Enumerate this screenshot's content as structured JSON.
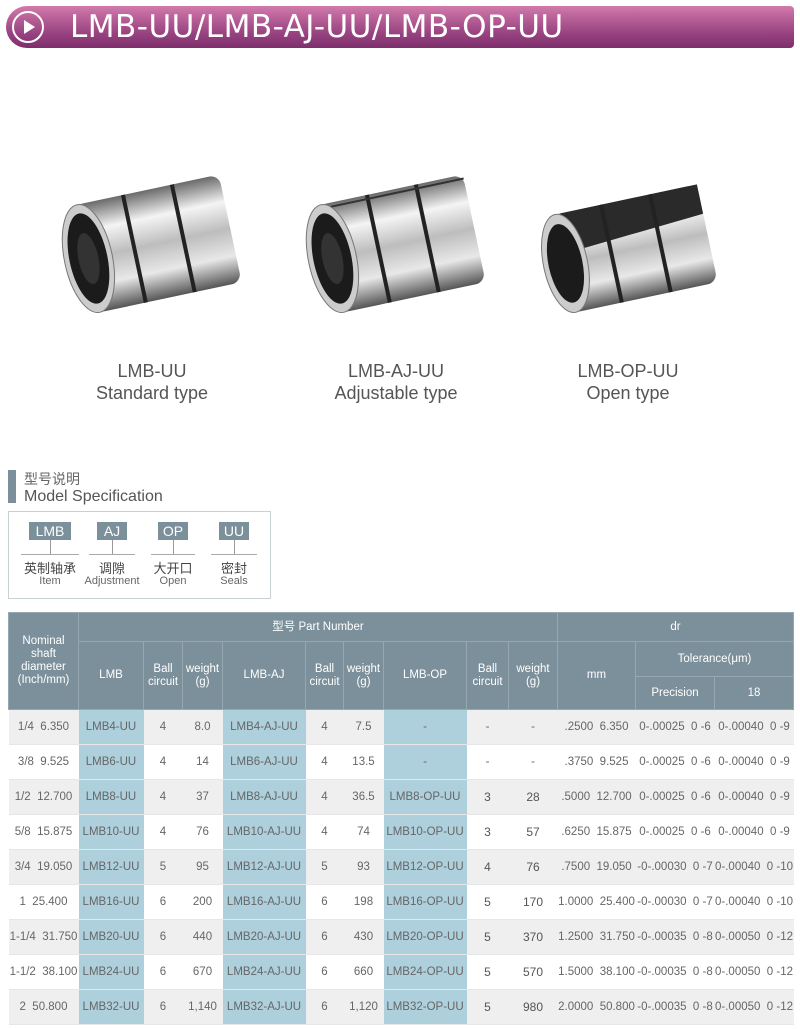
{
  "header": {
    "title": "LMB-UU/LMB-AJ-UU/LMB-OP-UU",
    "icon": "play-arrow-icon",
    "colors": {
      "banner": "#9c4684",
      "table_header": "#7b909a",
      "part_cell": "#aecfdc"
    }
  },
  "products": [
    {
      "model": "LMB-UU",
      "type": "Standard type"
    },
    {
      "model": "LMB-AJ-UU",
      "type": "Adjustable type"
    },
    {
      "model": "LMB-OP-UU",
      "type": "Open type"
    }
  ],
  "spec": {
    "title_cn": "型号说明",
    "title_en": "Model Specification",
    "parts": [
      {
        "code": "LMB",
        "cn": "英制轴承",
        "en": "Item"
      },
      {
        "code": "AJ",
        "cn": "调隙",
        "en": "Adjustment"
      },
      {
        "code": "OP",
        "cn": "大开口",
        "en": "Open"
      },
      {
        "code": "UU",
        "cn": "密封",
        "en": "Seals"
      }
    ]
  },
  "table": {
    "headers": {
      "nominal": "Nominal shaft diameter (Inch/mm)",
      "part_number": "型号 Part Number",
      "dr": "dr",
      "lmb": "LMB",
      "ball": "Ball circuit",
      "weight": "weight (g)",
      "lmb_aj": "LMB-AJ",
      "lmb_op": "LMB-OP",
      "mm": "mm",
      "tolerance": "Tolerance(μm)",
      "precision": "Precision",
      "grade": "18"
    },
    "rows": [
      [
        "1/4  6.350",
        "LMB4-UU",
        "4",
        "8.0",
        "LMB4-AJ-UU",
        "4",
        "7.5",
        "-",
        "-",
        "-",
        ".2500  6.350",
        "0-.00025  0 -6",
        "0-.00040  0 -9"
      ],
      [
        "3/8  9.525",
        "LMB6-UU",
        "4",
        "14",
        "LMB6-AJ-UU",
        "4",
        "13.5",
        "-",
        "-",
        "-",
        ".3750  9.525",
        "0-.00025  0 -6",
        "0-.00040  0 -9"
      ],
      [
        "1/2  12.700",
        "LMB8-UU",
        "4",
        "37",
        "LMB8-AJ-UU",
        "4",
        "36.5",
        "LMB8-OP-UU",
        "3",
        "28",
        ".5000  12.700",
        "0-.00025  0 -6",
        "0-.00040  0 -9"
      ],
      [
        "5/8  15.875",
        "LMB10-UU",
        "4",
        "76",
        "LMB10-AJ-UU",
        "4",
        "74",
        "LMB10-OP-UU",
        "3",
        "57",
        ".6250  15.875",
        "0-.00025  0 -6",
        "0-.00040  0 -9"
      ],
      [
        "3/4  19.050",
        "LMB12-UU",
        "5",
        "95",
        "LMB12-AJ-UU",
        "5",
        "93",
        "LMB12-OP-UU",
        "4",
        "76",
        ".7500  19.050",
        "-0-.00030  0 -7",
        "0-.00040  0 -10"
      ],
      [
        "1  25.400",
        "LMB16-UU",
        "6",
        "200",
        "LMB16-AJ-UU",
        "6",
        "198",
        "LMB16-OP-UU",
        "5",
        "170",
        "1.0000  25.400",
        "-0-.00030  0 -7",
        "0-.00040  0 -10"
      ],
      [
        "1-1/4  31.750",
        "LMB20-UU",
        "6",
        "440",
        "LMB20-AJ-UU",
        "6",
        "430",
        "LMB20-OP-UU",
        "5",
        "370",
        "1.2500  31.750",
        "-0-.00035  0 -8",
        "0-.00050  0 -12"
      ],
      [
        "1-1/2  38.100",
        "LMB24-UU",
        "6",
        "670",
        "LMB24-AJ-UU",
        "6",
        "660",
        "LMB24-OP-UU",
        "5",
        "570",
        "1.5000  38.100",
        "-0-.00035  0 -8",
        "0-.00050  0 -12"
      ],
      [
        "2  50.800",
        "LMB32-UU",
        "6",
        "1,140",
        "LMB32-AJ-UU",
        "6",
        "1,120",
        "LMB32-OP-UU",
        "5",
        "980",
        "2.0000  50.800",
        "-0-.00035  0 -8",
        "0-.00050  0 -12"
      ]
    ]
  }
}
